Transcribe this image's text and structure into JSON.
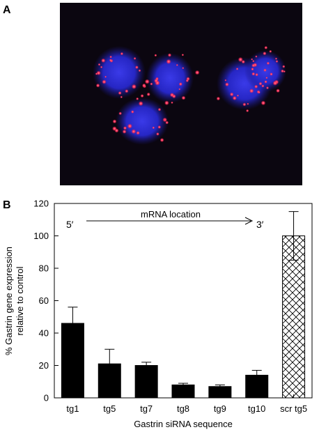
{
  "panels": {
    "a_label": "A",
    "b_label": "B"
  },
  "micrograph": {
    "background": "#0b0610",
    "nuclei_color": "#2a2ad0",
    "puncta_color": "#ff2a55"
  },
  "chart_data": {
    "type": "bar",
    "categories": [
      "tg1",
      "tg5",
      "tg7",
      "tg8",
      "tg9",
      "tg10",
      "scr tg5"
    ],
    "values": [
      46,
      21,
      20,
      8,
      7,
      14,
      100
    ],
    "errors": [
      10,
      9,
      2,
      1,
      1,
      3,
      15
    ],
    "fills": [
      "solid",
      "solid",
      "solid",
      "solid",
      "solid",
      "solid",
      "crosshatch"
    ],
    "xlabel": "Gastrin siRNA sequence",
    "ylabel_line1": "% Gastrin gene expression",
    "ylabel_line2": "relative to control",
    "ylim": [
      0,
      120
    ],
    "yticks": [
      0,
      20,
      40,
      60,
      80,
      100,
      120
    ],
    "annotation": {
      "five_prime": "5′",
      "mid_label": "mRNA location",
      "three_prime": "3′"
    },
    "bar_color": "#000000"
  }
}
